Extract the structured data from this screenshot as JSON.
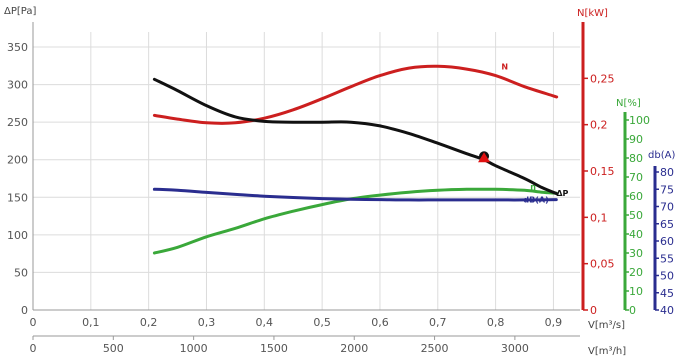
{
  "chart_data": {
    "type": "line",
    "axes": {
      "x_flow_m3s": {
        "label": "V[m³/s]",
        "range": [
          0,
          0.92
        ],
        "ticks": [
          "0",
          "0,1",
          "0,2",
          "0,3",
          "0,4",
          "0,5",
          "0,6",
          "0,7",
          "0,8",
          "0,9"
        ]
      },
      "x_flow_m3h": {
        "label": "V[m³/h]",
        "ticks": [
          "0",
          "500",
          "1000",
          "1500",
          "2000",
          "2500",
          "3000"
        ]
      },
      "pressure": {
        "label": "ΔP[Pa]",
        "range": [
          0,
          370
        ],
        "ticks": [
          "0",
          "50",
          "100",
          "150",
          "200",
          "250",
          "300",
          "350"
        ],
        "color": "#555555"
      },
      "power": {
        "label": "N[kW]",
        "range": [
          0,
          0.3
        ],
        "ticks": [
          "0",
          "0,05",
          "0,1",
          "0,15",
          "0,2",
          "0,25"
        ],
        "color": "#cc1f1f"
      },
      "efficiency": {
        "label": "N[%]",
        "range": [
          0,
          100
        ],
        "ticks": [
          "0",
          "10",
          "20",
          "30",
          "40",
          "50",
          "60",
          "70",
          "80",
          "90",
          "100"
        ],
        "color": "#3aa83a"
      },
      "sound": {
        "label": "db(A)",
        "range": [
          40,
          80
        ],
        "ticks": [
          "40",
          "45",
          "50",
          "55",
          "60",
          "65",
          "70",
          "75",
          "80"
        ],
        "color": "#2a2d8f"
      }
    },
    "series": [
      {
        "name": "ΔP",
        "axis": "pressure",
        "color": "#111111",
        "points": [
          [
            0.21,
            307
          ],
          [
            0.25,
            292
          ],
          [
            0.3,
            272
          ],
          [
            0.35,
            257
          ],
          [
            0.4,
            251
          ],
          [
            0.45,
            250
          ],
          [
            0.5,
            250
          ],
          [
            0.55,
            250
          ],
          [
            0.6,
            245
          ],
          [
            0.65,
            235
          ],
          [
            0.7,
            222
          ],
          [
            0.75,
            208
          ],
          [
            0.78,
            200
          ],
          [
            0.8,
            192
          ],
          [
            0.85,
            175
          ],
          [
            0.88,
            163
          ],
          [
            0.905,
            155
          ]
        ]
      },
      {
        "name": "N",
        "axis": "power",
        "color": "#cc1f1f",
        "points": [
          [
            0.21,
            0.21
          ],
          [
            0.25,
            0.206
          ],
          [
            0.3,
            0.202
          ],
          [
            0.35,
            0.202
          ],
          [
            0.4,
            0.207
          ],
          [
            0.45,
            0.216
          ],
          [
            0.5,
            0.228
          ],
          [
            0.55,
            0.241
          ],
          [
            0.6,
            0.253
          ],
          [
            0.65,
            0.261
          ],
          [
            0.7,
            0.263
          ],
          [
            0.75,
            0.26
          ],
          [
            0.8,
            0.253
          ],
          [
            0.85,
            0.241
          ],
          [
            0.9,
            0.231
          ],
          [
            0.905,
            0.23
          ]
        ]
      },
      {
        "name": "η",
        "axis": "efficiency",
        "color": "#3aa83a",
        "points": [
          [
            0.21,
            30
          ],
          [
            0.25,
            33
          ],
          [
            0.3,
            38.5
          ],
          [
            0.35,
            43
          ],
          [
            0.4,
            48
          ],
          [
            0.45,
            52
          ],
          [
            0.5,
            55.5
          ],
          [
            0.55,
            58.5
          ],
          [
            0.6,
            60.5
          ],
          [
            0.65,
            62
          ],
          [
            0.7,
            63
          ],
          [
            0.75,
            63.5
          ],
          [
            0.8,
            63.5
          ],
          [
            0.85,
            63
          ],
          [
            0.88,
            62
          ],
          [
            0.905,
            61.5
          ]
        ]
      },
      {
        "name": "dB(A)",
        "axis": "sound",
        "color": "#2a2d8f",
        "points": [
          [
            0.21,
            75
          ],
          [
            0.25,
            74.7
          ],
          [
            0.3,
            74.1
          ],
          [
            0.35,
            73.5
          ],
          [
            0.4,
            73
          ],
          [
            0.45,
            72.6
          ],
          [
            0.5,
            72.3
          ],
          [
            0.55,
            72.1
          ],
          [
            0.6,
            72
          ],
          [
            0.65,
            71.9
          ],
          [
            0.7,
            71.9
          ],
          [
            0.75,
            71.9
          ],
          [
            0.8,
            71.9
          ],
          [
            0.85,
            71.9
          ],
          [
            0.905,
            72
          ]
        ]
      }
    ],
    "curve_labels": [
      {
        "text": "N",
        "series": 1,
        "x": 0.81,
        "y": 0.263
      },
      {
        "text": "η",
        "series": 2,
        "x": 0.86,
        "y": 65
      },
      {
        "text": "ΔP",
        "series": 0,
        "x": 0.905,
        "y": 156
      },
      {
        "text": "dB(A)",
        "series": 3,
        "x": 0.87,
        "y": 72
      }
    ],
    "operating_point": {
      "x": 0.78,
      "y": 202
    },
    "grid": true
  }
}
